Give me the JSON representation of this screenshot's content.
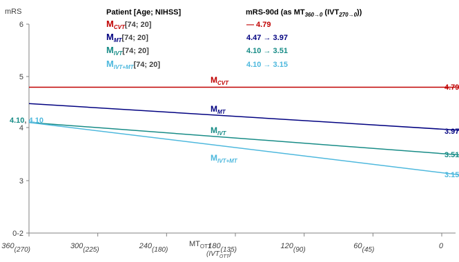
{
  "chart_data": {
    "type": "line",
    "y_axis": {
      "label": "mRS",
      "ticks": [
        {
          "value": 6,
          "label": "6"
        },
        {
          "value": 5,
          "label": "5"
        },
        {
          "value": 4,
          "label": "4"
        },
        {
          "value": 3,
          "label": "3"
        },
        {
          "value": 2,
          "label": "0-2"
        }
      ],
      "range": [
        2,
        6
      ]
    },
    "x_axis": {
      "label_main": "MT",
      "label_main_sub": "OTT",
      "label_paren": "(IVT",
      "label_paren_sub": "OTT",
      "label_paren_close": ")",
      "range": [
        360,
        0
      ],
      "ticks": [
        {
          "value": 360,
          "main": "360",
          "paren": "(270)"
        },
        {
          "value": 300,
          "main": "300",
          "paren": "(225)"
        },
        {
          "value": 240,
          "main": "240",
          "paren": "(180)"
        },
        {
          "value": 180,
          "main": "180",
          "paren": "(135)"
        },
        {
          "value": 120,
          "main": "120",
          "paren": "(90)"
        },
        {
          "value": 60,
          "main": "60",
          "paren": "(45)"
        },
        {
          "value": 0,
          "main": "0",
          "paren": ""
        }
      ]
    },
    "legend_header": {
      "patient": "Patient [Age; NIHSS]",
      "mrs_prefix": "mRS-90d (as MT",
      "mrs_sub1": "360→0",
      "mrs_mid": " (IVT",
      "mrs_sub2": "270→0",
      "mrs_suffix": "))"
    },
    "series": [
      {
        "name": "M",
        "sub": "CVT",
        "params": "[74; 20]",
        "color": "#c00000",
        "x": [
          360,
          0
        ],
        "y": [
          4.79,
          4.79
        ],
        "legend_value": "— 4.79",
        "start_label": "",
        "end_label": "4.79"
      },
      {
        "name": "M",
        "sub": "MT",
        "params": "[74; 20]",
        "color": "#000080",
        "x": [
          360,
          0
        ],
        "y": [
          4.47,
          3.97
        ],
        "legend_value": "4.47 → 3.97",
        "start_label": "",
        "end_label": "3.97"
      },
      {
        "name": "M",
        "sub": "IVT",
        "params": "[74; 20]",
        "color": "#168b86",
        "x": [
          360,
          0
        ],
        "y": [
          4.1,
          3.51
        ],
        "legend_value": "4.10 → 3.51",
        "start_label": "",
        "end_label": "3.51"
      },
      {
        "name": "M",
        "sub": "IVT+MT",
        "params": "[74; 20]",
        "color": "#4db8dd",
        "x": [
          360,
          0
        ],
        "y": [
          4.1,
          3.15
        ],
        "legend_value": "4.10 → 3.15",
        "start_label": "",
        "end_label": "3.15"
      }
    ],
    "start_annotation": {
      "left": "4.10",
      "right": "4.10",
      "left_color": "#168b86",
      "right_color": "#4db8dd"
    }
  }
}
